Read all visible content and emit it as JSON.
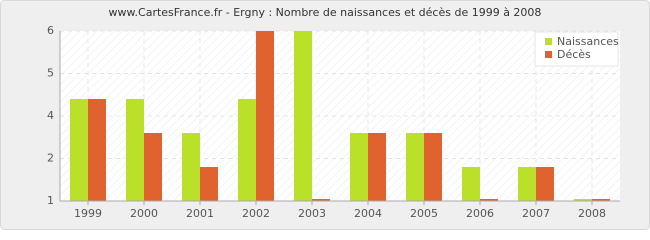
{
  "chart_data": {
    "type": "bar",
    "title": "www.CartesFrance.fr - Ergny : Nombre de naissances et décès de 1999 à 2008",
    "categories": [
      "1999",
      "2000",
      "2001",
      "2002",
      "2003",
      "2004",
      "2005",
      "2006",
      "2007",
      "2008"
    ],
    "series": [
      {
        "name": "Naissances",
        "color": "#bbe02a",
        "values": [
          4,
          4,
          3,
          4,
          6,
          3,
          3,
          2,
          2,
          1
        ]
      },
      {
        "name": "Décès",
        "color": "#e0622f",
        "values": [
          4,
          3,
          2,
          6,
          1,
          3,
          3,
          1,
          2,
          1
        ]
      }
    ],
    "ylim": [
      1,
      6
    ],
    "yticks": [
      1,
      {
        "value": 2.25,
        "label": "2"
      },
      {
        "value": 3.5,
        "label": "4"
      },
      {
        "value": 4.75,
        "label": "5"
      },
      6
    ],
    "grid": true,
    "legend": "top-right"
  }
}
